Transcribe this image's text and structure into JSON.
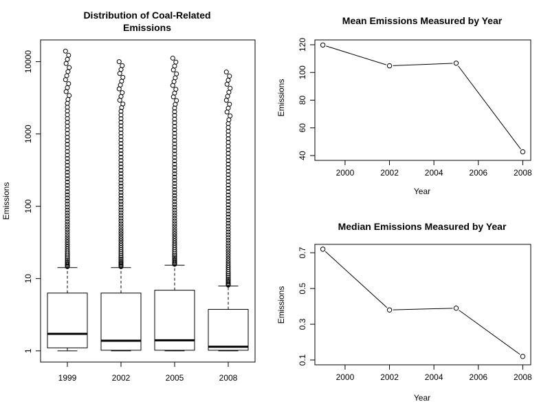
{
  "chart_data": [
    {
      "type": "boxplot",
      "title": [
        "Distribution of Coal-Related",
        "Emissions"
      ],
      "xlabel": "",
      "ylabel": "Emissions",
      "yscale": "log",
      "ylim": [
        0.7,
        20000
      ],
      "yticks": [
        1,
        10,
        100,
        1000,
        10000
      ],
      "ytick_labels": [
        "1",
        "10",
        "100",
        "1000",
        "10000"
      ],
      "categories": [
        "1999",
        "2002",
        "2005",
        "2008"
      ],
      "boxes": [
        {
          "min": 1.0,
          "q1": 1.1,
          "median": 1.72,
          "q3": 6.3,
          "whisker_high": 14.2,
          "outlier_max": 14000
        },
        {
          "min": 1.0,
          "q1": 1.02,
          "median": 1.38,
          "q3": 6.3,
          "whisker_high": 14.2,
          "outlier_max": 10000
        },
        {
          "min": 1.0,
          "q1": 1.02,
          "median": 1.4,
          "q3": 6.9,
          "whisker_high": 15.3,
          "outlier_max": 11200
        },
        {
          "min": 1.0,
          "q1": 1.02,
          "median": 1.14,
          "q3": 3.75,
          "whisker_high": 7.9,
          "outlier_max": 7200
        }
      ]
    },
    {
      "type": "line",
      "title": "Mean Emissions Measured by Year",
      "xlabel": "Year",
      "ylabel": "Emissions",
      "x": [
        1999,
        2002,
        2005,
        2008
      ],
      "y": [
        119.8,
        104.8,
        106.7,
        42.7
      ],
      "xticks": [
        2000,
        2002,
        2004,
        2006,
        2008
      ],
      "yticks": [
        40,
        60,
        80,
        100,
        120
      ],
      "xlim": [
        1999,
        2008
      ],
      "ylim": [
        40,
        120
      ]
    },
    {
      "type": "line",
      "title": "Median Emissions Measured by Year",
      "xlabel": "Year",
      "ylabel": "Emissions",
      "x": [
        1999,
        2002,
        2005,
        2008
      ],
      "y": [
        0.72,
        0.38,
        0.39,
        0.12
      ],
      "xticks": [
        2000,
        2002,
        2004,
        2006,
        2008
      ],
      "yticks": [
        0.1,
        0.3,
        0.5,
        0.7
      ],
      "ytick_labels": [
        "0.1",
        "0.3",
        "0.5",
        "0.7"
      ],
      "xlim": [
        1999,
        2008
      ],
      "ylim": [
        0.1,
        0.72
      ]
    }
  ]
}
